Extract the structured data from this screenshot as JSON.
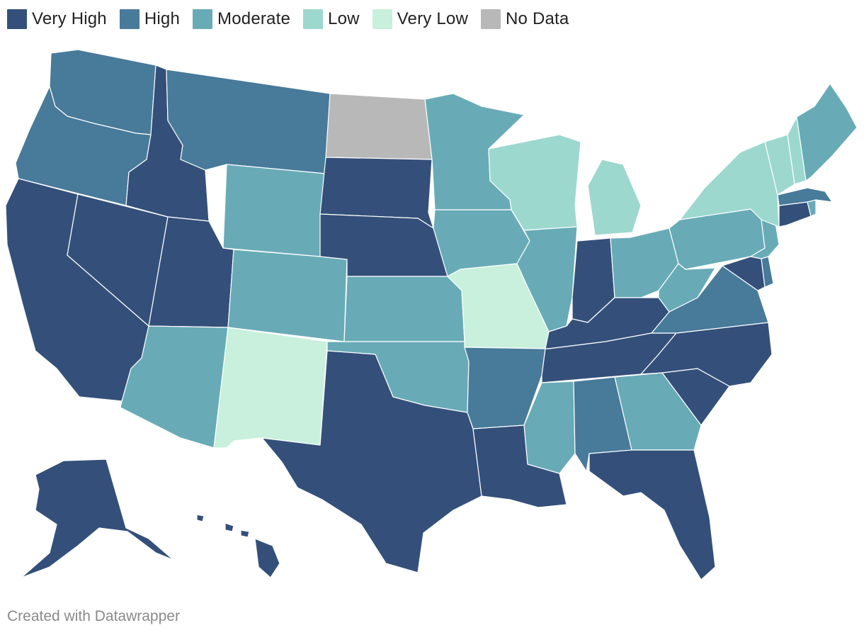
{
  "legend": [
    {
      "label": "Very High",
      "color": "#34507a"
    },
    {
      "label": "High",
      "color": "#487a9a"
    },
    {
      "label": "Moderate",
      "color": "#68abb7"
    },
    {
      "label": "Low",
      "color": "#9dd8cf"
    },
    {
      "label": "Very Low",
      "color": "#c8f0dc"
    },
    {
      "label": "No Data",
      "color": "#b8b8b8"
    }
  ],
  "credit": "Created with Datawrapper",
  "states": {
    "WA": "High",
    "OR": "High",
    "CA": "Very High",
    "NV": "Very High",
    "ID": "Very High",
    "MT": "High",
    "WY": "Moderate",
    "UT": "Very High",
    "AZ": "Moderate",
    "CO": "Moderate",
    "NM": "Very Low",
    "ND": "No Data",
    "SD": "Very High",
    "NE": "Very High",
    "KS": "Moderate",
    "OK": "Moderate",
    "TX": "Very High",
    "MN": "Moderate",
    "IA": "Moderate",
    "MO": "Very Low",
    "AR": "High",
    "LA": "Very High",
    "WI": "Low",
    "IL": "Moderate",
    "MI": "Low",
    "IN": "Very High",
    "OH": "Moderate",
    "KY": "Very High",
    "TN": "Very High",
    "MS": "Moderate",
    "AL": "High",
    "GA": "Moderate",
    "FL": "Very High",
    "SC": "Very High",
    "NC": "Very High",
    "VA": "High",
    "WV": "Moderate",
    "PA": "Moderate",
    "NY": "Low",
    "NJ": "Moderate",
    "DE": "High",
    "MD": "Very High",
    "CT": "Very High",
    "RI": "Moderate",
    "MA": "High",
    "VT": "Low",
    "NH": "Low",
    "ME": "Moderate",
    "AK": "Very High",
    "HI": "Very High"
  }
}
